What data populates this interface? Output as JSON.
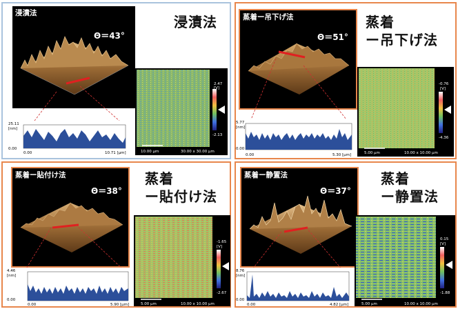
{
  "panels": [
    {
      "id": "immersion",
      "method_lines": [
        "浸漬法"
      ],
      "afm_label": "浸漬法",
      "theta": "Θ＝43°",
      "profile": {
        "ymax": "25.11",
        "yunit": "[nm]",
        "ymin": "0.00",
        "xmin": "0.00",
        "xmax": "10.71 [μm]"
      },
      "map": {
        "scale_bar": "10.00 μm",
        "size": "30.00 x 30.00 μm",
        "cb_top": "2.47",
        "cb_unit": "[V]",
        "cb_bottom": "-2.13"
      },
      "border_color": "#a9c3dd"
    },
    {
      "id": "vapor-hanging",
      "method_lines": [
        "蒸着",
        "ー吊下げ法"
      ],
      "afm_label": "蒸着ー吊下げ法",
      "theta": "Θ＝51°",
      "profile": {
        "ymax": "5.77",
        "yunit": "[nm]",
        "ymin": "0.00",
        "xmin": "0.00",
        "xmax": "5.30 [μm]"
      },
      "map": {
        "scale_bar": "5.00 μm",
        "size": "10.00 x 10.00 μm",
        "cb_top": "-0.76",
        "cb_unit": "[V]",
        "cb_bottom": "-4.36"
      },
      "border_color": "#e8864b"
    },
    {
      "id": "vapor-pasting",
      "method_lines": [
        "蒸着",
        "ー貼付け法"
      ],
      "afm_label": "蒸着ー貼付け法",
      "theta": "Θ＝38°",
      "profile": {
        "ymax": "4.46",
        "yunit": "[nm]",
        "ymin": "0.00",
        "xmin": "0.00",
        "xmax": "5.90 [μm]"
      },
      "map": {
        "scale_bar": "5.00 μm",
        "size": "10.00 x 10.00 μm",
        "cb_top": "-1.65",
        "cb_unit": "[V]",
        "cb_bottom": "-2.67"
      },
      "border_color": "#e8864b"
    },
    {
      "id": "vapor-standing",
      "method_lines": [
        "蒸着",
        "ー静置法"
      ],
      "afm_label": "蒸着ー静置法",
      "theta": "Θ＝37°",
      "profile": {
        "ymax": "8.76",
        "yunit": "[nm]",
        "ymin": "0.00",
        "xmin": "0.00",
        "xmax": "4.82 [μm]"
      },
      "map": {
        "scale_bar": "5.00 μm",
        "size": "10.00 x 10.00 μm",
        "cb_top": "0.15",
        "cb_unit": "[V]",
        "cb_bottom": "-1.88"
      },
      "border_color": "#e8864b"
    }
  ],
  "colors": {
    "surface_brown": "#8a5a2b",
    "profile_fill": "#2c4f9a",
    "map_green": "#9bc46a",
    "highlight_red": "#e02020",
    "guide_red": "#d03030"
  }
}
